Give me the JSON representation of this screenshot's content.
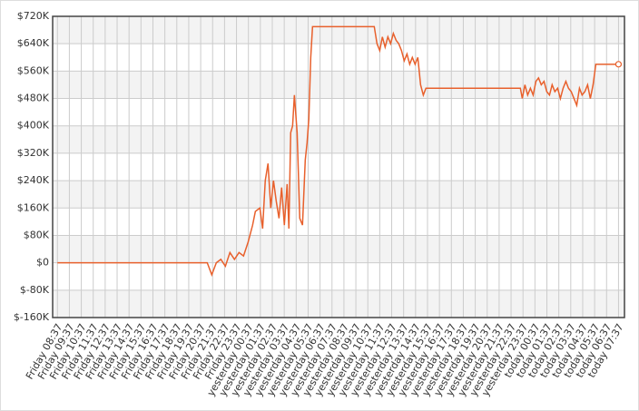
{
  "chart_data": {
    "type": "line",
    "x": [
      0,
      12.55,
      12.93,
      13.31,
      13.69,
      14.07,
      14.45,
      14.83,
      15.21,
      15.59,
      15.97,
      16.35,
      16.58,
      16.96,
      17.19,
      17.41,
      17.64,
      17.87,
      18.1,
      18.33,
      18.56,
      18.78,
      19.01,
      19.24,
      19.39,
      19.54,
      19.7,
      19.85,
      20.08,
      20.3,
      20.53,
      20.76,
      20.91,
      21.06,
      21.22,
      21.37,
      26.54,
      26.77,
      27.0,
      27.22,
      27.45,
      27.68,
      27.91,
      28.14,
      28.37,
      28.59,
      28.82,
      29.05,
      29.28,
      29.51,
      29.73,
      29.96,
      30.19,
      30.42,
      30.65,
      30.87,
      38.78,
      38.94,
      39.16,
      39.39,
      39.62,
      39.85,
      40.08,
      40.3,
      40.53,
      40.76,
      40.99,
      41.22,
      41.44,
      41.67,
      41.9,
      42.13,
      42.36,
      42.59,
      42.81,
      43.04,
      43.27,
      43.5,
      43.73,
      43.95,
      44.18,
      44.41,
      44.64,
      44.87,
      45.1,
      47.0
    ],
    "series": [
      {
        "color": "#e8602c",
        "values": [
          0,
          0,
          -35,
          0,
          10,
          -10,
          30,
          10,
          30,
          20,
          60,
          110,
          150,
          160,
          100,
          240,
          290,
          160,
          240,
          180,
          130,
          220,
          110,
          230,
          100,
          380,
          400,
          490,
          380,
          130,
          110,
          300,
          350,
          420,
          600,
          690,
          690,
          640,
          620,
          660,
          630,
          660,
          640,
          670,
          650,
          640,
          620,
          590,
          610,
          580,
          600,
          580,
          600,
          520,
          490,
          510,
          510,
          480,
          520,
          490,
          510,
          490,
          530,
          540,
          520,
          530,
          500,
          490,
          520,
          500,
          510,
          480,
          510,
          530,
          510,
          500,
          480,
          460,
          510,
          490,
          500,
          520,
          480,
          520,
          580,
          580
        ]
      }
    ],
    "xlim": [
      -0.4,
      47.5
    ],
    "xticks": [
      {
        "value": 0,
        "label": "Friday 08:37"
      },
      {
        "value": 1,
        "label": "Friday 09:37"
      },
      {
        "value": 2,
        "label": "Friday 10:37"
      },
      {
        "value": 3,
        "label": "Friday 11:37"
      },
      {
        "value": 4,
        "label": "Friday 12:37"
      },
      {
        "value": 5,
        "label": "Friday 13:37"
      },
      {
        "value": 6,
        "label": "Friday 14:37"
      },
      {
        "value": 7,
        "label": "Friday 15:37"
      },
      {
        "value": 8,
        "label": "Friday 16:37"
      },
      {
        "value": 9,
        "label": "Friday 17:37"
      },
      {
        "value": 10,
        "label": "Friday 18:37"
      },
      {
        "value": 11,
        "label": "Friday 19:37"
      },
      {
        "value": 12,
        "label": "Friday 20:37"
      },
      {
        "value": 13,
        "label": "Friday 21:37"
      },
      {
        "value": 14,
        "label": "Friday 22:37"
      },
      {
        "value": 15,
        "label": "Friday 23:37"
      },
      {
        "value": 16,
        "label": "yesterday 00:37"
      },
      {
        "value": 17,
        "label": "yesterday 01:37"
      },
      {
        "value": 18,
        "label": "yesterday 02:37"
      },
      {
        "value": 19,
        "label": "yesterday 03:37"
      },
      {
        "value": 20,
        "label": "yesterday 04:37"
      },
      {
        "value": 21,
        "label": "yesterday 05:37"
      },
      {
        "value": 22,
        "label": "yesterday 06:37"
      },
      {
        "value": 23,
        "label": "yesterday 07:37"
      },
      {
        "value": 24,
        "label": "yesterday 08:37"
      },
      {
        "value": 25,
        "label": "yesterday 09:37"
      },
      {
        "value": 26,
        "label": "yesterday 10:37"
      },
      {
        "value": 27,
        "label": "yesterday 11:37"
      },
      {
        "value": 28,
        "label": "yesterday 12:37"
      },
      {
        "value": 29,
        "label": "yesterday 13:37"
      },
      {
        "value": 30,
        "label": "yesterday 14:37"
      },
      {
        "value": 31,
        "label": "yesterday 15:37"
      },
      {
        "value": 32,
        "label": "yesterday 16:37"
      },
      {
        "value": 33,
        "label": "yesterday 17:37"
      },
      {
        "value": 34,
        "label": "yesterday 18:37"
      },
      {
        "value": 35,
        "label": "yesterday 19:37"
      },
      {
        "value": 36,
        "label": "yesterday 20:37"
      },
      {
        "value": 37,
        "label": "yesterday 21:37"
      },
      {
        "value": 38,
        "label": "yesterday 22:37"
      },
      {
        "value": 39,
        "label": "yesterday 23:37"
      },
      {
        "value": 40,
        "label": "today 00:37"
      },
      {
        "value": 41,
        "label": "today 01:37"
      },
      {
        "value": 42,
        "label": "today 02:37"
      },
      {
        "value": 43,
        "label": "today 03:37"
      },
      {
        "value": 44,
        "label": "today 04:37"
      },
      {
        "value": 45,
        "label": "today 05:37"
      },
      {
        "value": 46,
        "label": "today 06:37"
      },
      {
        "value": 47,
        "label": "today 07:37"
      }
    ],
    "ylim": [
      -160,
      720
    ],
    "yticks": [
      {
        "value": -160,
        "label": "$-160K"
      },
      {
        "value": -80,
        "label": "$-80K"
      },
      {
        "value": 0,
        "label": "$0"
      },
      {
        "value": 80,
        "label": "$80K"
      },
      {
        "value": 160,
        "label": "$160K"
      },
      {
        "value": 240,
        "label": "$240K"
      },
      {
        "value": 320,
        "label": "$320K"
      },
      {
        "value": 400,
        "label": "$400K"
      },
      {
        "value": 480,
        "label": "$480K"
      },
      {
        "value": 560,
        "label": "$560K"
      },
      {
        "value": 640,
        "label": "$640K"
      },
      {
        "value": 720,
        "label": "$720K"
      }
    ],
    "grid": true
  }
}
